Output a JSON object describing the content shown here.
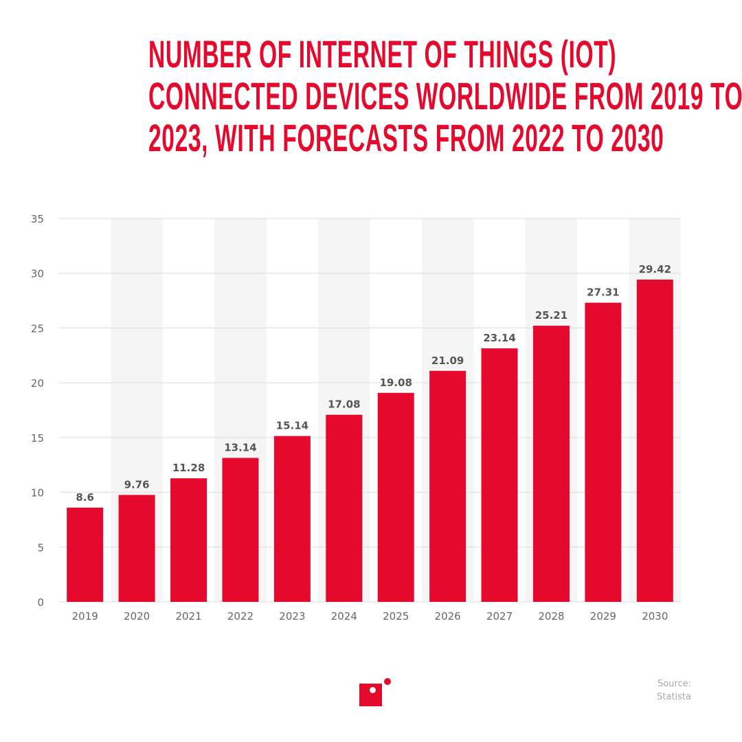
{
  "chart_data": {
    "type": "bar",
    "title_lines": [
      "NUMBER OF INTERNET OF THINGS (IOT)",
      "CONNECTED DEVICES WORLDWIDE FROM 2019 TO",
      "2023, WITH FORECASTS FROM 2022 TO 2030"
    ],
    "categories": [
      "2019",
      "2020",
      "2021",
      "2022",
      "2023",
      "2024",
      "2025",
      "2026",
      "2027",
      "2028",
      "2029",
      "2030"
    ],
    "values": [
      8.6,
      9.76,
      11.28,
      13.14,
      15.14,
      17.08,
      19.08,
      21.09,
      23.14,
      25.21,
      27.31,
      29.42
    ],
    "data_labels": [
      "8.6",
      "9.76",
      "11.28",
      "13.14",
      "15.14",
      "17.08",
      "19.08",
      "21.09",
      "23.14",
      "25.21",
      "27.31",
      "29.42"
    ],
    "yticks": [
      0,
      5,
      10,
      15,
      20,
      25,
      30,
      35
    ],
    "ylim": [
      0,
      35
    ],
    "xlabel": "",
    "ylabel": "",
    "grid": true,
    "colors": {
      "bar": "#e50a2d",
      "band": "#f5f5f5",
      "grid": "#dddddd"
    }
  },
  "footer": {
    "source_line1": "Source:",
    "source_line2": "Statista",
    "logo_icon": "brand-square-dot-logo"
  }
}
